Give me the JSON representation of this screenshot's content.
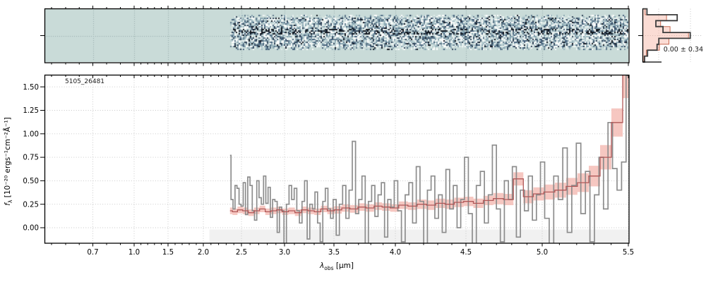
{
  "figure": {
    "title_annotation": "5105_26481",
    "stats_label": "0.00 ± 0.34",
    "xlabel": {
      "main": "λ",
      "sub": "obs",
      "rest": " [μm]"
    },
    "ylabel": {
      "main": "f",
      "sub": "λ",
      "rest": " [10⁻²⁰ ergs⁻¹cm⁻²Å⁻¹]"
    }
  },
  "colors": {
    "spec2d_background": "#c9dbd8",
    "gray_spectrum": "#8d8d8d",
    "red_model": "#b05858",
    "pink_band": "#f5bdb6",
    "hist_dark": "#3d3d3d",
    "hist_fill_edge": "#c86a52",
    "hist_fill": "rgba(247,178,160,0.45)",
    "gridline": "#c6c6c6",
    "shaded_region": "#f1f1f1",
    "spine": "#000000"
  },
  "chart_data": [
    {
      "type": "heatmap",
      "name": "spec2d-strip",
      "description": "2D spectrum cutout: random noise strip over teal background, trace row slightly darker in the middle",
      "lambda_start": 2.35,
      "lambda_end": 5.5,
      "rows": 25,
      "noise_seed": 20481,
      "grid": true
    },
    {
      "type": "line",
      "name": "spectrum-1d",
      "title": "5105_26481",
      "xlabel": "λ_obs [μm]",
      "ylabel": "f_λ [10^-20 ergs^-1 cm^-2 Å^-1]",
      "xlim": [
        0.35,
        5.5
      ],
      "ylim": [
        -0.165,
        1.626
      ],
      "grid": true,
      "x_ticks": [
        {
          "v": 0.7,
          "label": "0.7"
        },
        {
          "v": 1.0,
          "label": "1.0"
        },
        {
          "v": 1.5,
          "label": "1.5"
        },
        {
          "v": 2.0,
          "label": "2.0"
        },
        {
          "v": 2.5,
          "label": "2.5"
        },
        {
          "v": 3.0,
          "label": "3.0"
        },
        {
          "v": 3.5,
          "label": "3.5"
        },
        {
          "v": 4.0,
          "label": "4.0"
        },
        {
          "v": 4.5,
          "label": "4.5"
        },
        {
          "v": 5.0,
          "label": "5.0"
        },
        {
          "v": 5.5,
          "label": "5.5"
        }
      ],
      "y_ticks": [
        {
          "v": 0.0,
          "label": "0.00"
        },
        {
          "v": 0.25,
          "label": "0.25"
        },
        {
          "v": 0.5,
          "label": "0.50"
        },
        {
          "v": 0.75,
          "label": "0.75"
        },
        {
          "v": 1.0,
          "label": "1.00"
        },
        {
          "v": 1.25,
          "label": "1.25"
        },
        {
          "v": 1.5,
          "label": "1.50"
        }
      ],
      "shaded_region": {
        "x_start": 2.08,
        "x_end": 5.5,
        "y_below": 0.0
      },
      "series": [
        {
          "name": "observed-flux",
          "style": "step",
          "lambda_start": 2.35,
          "lambda_step": 0.02625,
          "values": [
            0.77,
            0.3,
            0.2,
            0.45,
            0.42,
            0.25,
            0.23,
            0.48,
            0.14,
            0.54,
            0.45,
            0.18,
            0.08,
            0.5,
            0.32,
            0.25,
            0.55,
            0.26,
            0.43,
            0.11,
            0.3,
            0.28,
            -0.05,
            0.22,
            0.18,
            -0.28,
            0.25,
            0.45,
            0.3,
            0.42,
            0.18,
            0.05,
            0.28,
            0.5,
            -0.12,
            0.25,
            0.2,
            0.38,
            0.05,
            -0.15,
            0.28,
            0.42,
            0.2,
            0.1,
            0.3,
            -0.08,
            0.25,
            0.45,
            0.1,
            0.4,
            0.92,
            0.15,
            0.3,
            0.55,
            -0.2,
            0.28,
            0.45,
            0.12,
            0.35,
            0.48,
            -0.1,
            0.3,
            0.22,
            0.5,
            0.18,
            -0.15,
            0.35,
            0.48,
            0.05,
            0.65,
            0.28,
            -0.25,
            0.4,
            0.55,
            0.1,
            0.35,
            -0.05,
            0.62,
            0.2,
            0.45,
            0.0,
            0.3,
            0.75,
            0.15,
            -0.2,
            0.45,
            0.6,
            0.05,
            0.35,
            0.88,
            0.2,
            -0.15,
            0.5,
            0.3,
            0.65,
            -0.1,
            0.4,
            0.18,
            0.55,
            0.08,
            0.35,
            0.7,
            0.1,
            -0.2,
            0.55,
            0.3,
            0.85,
            -0.05,
            0.45,
            0.9,
            0.15,
            0.6,
            -0.15,
            0.35,
            0.75,
            0.2,
            1.12,
            0.63,
            0.4,
            0.7,
            1.62
          ]
        },
        {
          "name": "model-flux",
          "style": "step",
          "lambda_start": 2.35,
          "lambda_step": 0.065625,
          "values": [
            0.18,
            0.17,
            0.19,
            0.18,
            0.16,
            0.18,
            0.2,
            0.17,
            0.18,
            0.19,
            0.17,
            0.18,
            0.16,
            0.19,
            0.18,
            0.17,
            0.2,
            0.18,
            0.19,
            0.21,
            0.2,
            0.22,
            0.21,
            0.23,
            0.22,
            0.21,
            0.24,
            0.23,
            0.25,
            0.24,
            0.26,
            0.25,
            0.27,
            0.28,
            0.26,
            0.29,
            0.31,
            0.3,
            0.52,
            0.33,
            0.36,
            0.38,
            0.4,
            0.44,
            0.48,
            0.55,
            0.75,
            1.12,
            1.7
          ],
          "sigma": [
            0.035,
            0.035,
            0.035,
            0.035,
            0.035,
            0.035,
            0.035,
            0.035,
            0.035,
            0.035,
            0.035,
            0.035,
            0.035,
            0.035,
            0.035,
            0.035,
            0.035,
            0.035,
            0.04,
            0.04,
            0.04,
            0.04,
            0.04,
            0.04,
            0.04,
            0.04,
            0.04,
            0.04,
            0.05,
            0.05,
            0.05,
            0.05,
            0.05,
            0.05,
            0.05,
            0.05,
            0.06,
            0.06,
            0.07,
            0.07,
            0.07,
            0.08,
            0.08,
            0.09,
            0.1,
            0.11,
            0.13,
            0.15,
            0.32
          ]
        }
      ]
    },
    {
      "type": "bar",
      "name": "noise-histogram",
      "orientation": "horizontal",
      "label": "0.00 ± 0.34",
      "bins": 9,
      "series": [
        {
          "name": "dark-outline",
          "values": [
            0.07,
            0.58,
            0.22,
            0.34,
            0.8,
            0.27,
            0.24,
            0.08,
            0.03
          ]
        },
        {
          "name": "pink-filled",
          "values": [
            0.04,
            0.4,
            0.3,
            0.46,
            0.77,
            0.44,
            0.28,
            0.06,
            0.02
          ]
        }
      ]
    }
  ]
}
